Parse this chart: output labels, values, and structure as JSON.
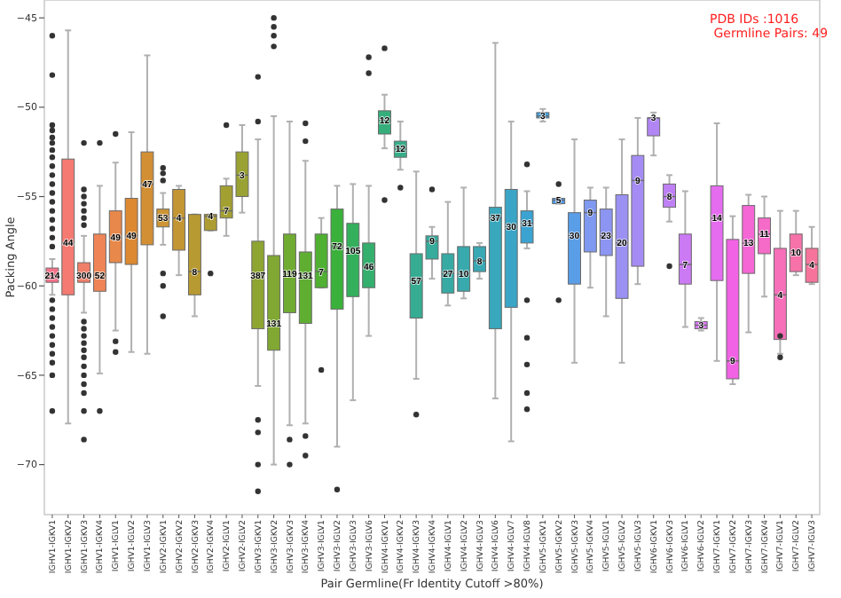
{
  "chart_data": {
    "type": "box",
    "xlabel": "Pair Germline(Fr Identity Cutoff >80%)",
    "ylabel": "Packing Angle",
    "categories": [
      "IGHV1-IGKV1",
      "IGHV1-IGKV2",
      "IGHV1-IGKV3",
      "IGHV1-IGKV4",
      "IGHV1-IGLV1",
      "IGHV1-IGLV2",
      "IGHV1-IGLV3",
      "IGHV2-IGKV1",
      "IGHV2-IGKV2",
      "IGHV2-IGKV3",
      "IGHV2-IGKV4",
      "IGHV2-IGLV1",
      "IGHV2-IGLV2",
      "IGHV3-IGKV1",
      "IGHV3-IGKV2",
      "IGHV3-IGKV3",
      "IGHV3-IGKV4",
      "IGHV3-IGLV1",
      "IGHV3-IGLV2",
      "IGHV3-IGLV3",
      "IGHV3-IGLV6",
      "IGHV4-IGKV1",
      "IGHV4-IGKV2",
      "IGHV4-IGKV3",
      "IGHV4-IGKV4",
      "IGHV4-IGLV1",
      "IGHV4-IGLV2",
      "IGHV4-IGLV3",
      "IGHV4-IGLV6",
      "IGHV4-IGLV7",
      "IGHV4-IGLV8",
      "IGHV5-IGKV1",
      "IGHV5-IGKV2",
      "IGHV5-IGKV3",
      "IGHV5-IGKV4",
      "IGHV5-IGLV1",
      "IGHV5-IGLV2",
      "IGHV5-IGLV3",
      "IGHV6-IGKV1",
      "IGHV6-IGKV3",
      "IGHV6-IGLV1",
      "IGHV6-IGLV2",
      "IGHV7-IGKV1",
      "IGHV7-IGKV2",
      "IGHV7-IGKV3",
      "IGHV7-IGKV4",
      "IGHV7-IGLV1",
      "IGHV7-IGLV2",
      "IGHV7-IGLV3"
    ],
    "colors": [
      "#f77189",
      "#f47a72",
      "#f07f6a",
      "#ef8556",
      "#e8884a",
      "#dc8932",
      "#d38f33",
      "#cd9533",
      "#c39533",
      "#b89a32",
      "#ad9c32",
      "#a3a032",
      "#99a232",
      "#8ea532",
      "#80a832",
      "#70ab32",
      "#5fae32",
      "#4fb032",
      "#3ab13a",
      "#34b05c",
      "#35af6e",
      "#35ae7c",
      "#36ad88",
      "#36ac93",
      "#37ab9c",
      "#37aaa4",
      "#38a9ac",
      "#38a8b4",
      "#39a7bc",
      "#3aa5c6",
      "#3ba3d2",
      "#3d9fe0",
      "#4a9bed",
      "#5a9ee8",
      "#7f98f0",
      "#8d95f2",
      "#9a91f3",
      "#a58cf4",
      "#b186f4",
      "#be80f4",
      "#cc79f4",
      "#d972f3",
      "#e56bef",
      "#f162e4",
      "#f567d4",
      "#f56bc7",
      "#f66fb8",
      "#f672a9",
      "#f6749b"
    ],
    "ylim": [
      -72.8,
      -44
    ],
    "yticks": [
      {
        "value": -45,
        "label": "−45"
      },
      {
        "value": -50,
        "label": "−50"
      },
      {
        "value": -55,
        "label": "−55"
      },
      {
        "value": -60,
        "label": "−60"
      },
      {
        "value": -65,
        "label": "−65"
      },
      {
        "value": -70,
        "label": "−70"
      }
    ],
    "boxes": [
      {
        "low": -60.5,
        "q1": -59.8,
        "median": -59.4,
        "q3": -59.0,
        "high": -58.5,
        "outliers": [
          -46,
          -48.2,
          -51,
          -51.3,
          -51.7,
          -52,
          -52.4,
          -52.8,
          -53.3,
          -53.8,
          -54.3,
          -54.8,
          -55.3,
          -55.8,
          -56.3,
          -56.8,
          -57.3,
          -57.8,
          -60.8,
          -61.3,
          -61.8,
          -62.3,
          -62.8,
          -63.3,
          -63.8,
          -64.3,
          -65,
          -67
        ]
      },
      {
        "low": -67.7,
        "q1": -60.5,
        "median": -57.6,
        "q3": -52.9,
        "high": -45.7
      },
      {
        "low": -61.5,
        "q1": -59.8,
        "median": -59.4,
        "q3": -58.7,
        "high": -57.2,
        "outliers": [
          -52,
          -54.6,
          -55,
          -55.4,
          -55.8,
          -56.2,
          -56.6,
          -62,
          -62.4,
          -62.8,
          -63.2,
          -63.6,
          -64,
          -64.5,
          -65,
          -65.5,
          -66,
          -67,
          -68.6
        ]
      },
      {
        "low": -64.9,
        "q1": -60.3,
        "median": -59.4,
        "q3": -57.1,
        "high": -54.4,
        "outliers": [
          -52,
          -67
        ]
      },
      {
        "low": -62.5,
        "q1": -58.7,
        "median": -57.3,
        "q3": -55.8,
        "high": -53.1,
        "outliers": [
          -51.5,
          -63.1,
          -63.7
        ]
      },
      {
        "low": -63.7,
        "q1": -58.8,
        "median": -57.2,
        "q3": -55.1,
        "high": -51.4
      },
      {
        "low": -63.8,
        "q1": -57.7,
        "median": -54.3,
        "q3": -52.5,
        "high": -47.1
      },
      {
        "low": -57.7,
        "q1": -56.7,
        "median": -56.2,
        "q3": -55.7,
        "high": -54.8,
        "outliers": [
          -53.4,
          -53.7,
          -54.1,
          -59.3,
          -60,
          -61.7
        ]
      },
      {
        "low": -59.4,
        "q1": -58,
        "median": -56.2,
        "q3": -54.6,
        "high": -54.4
      },
      {
        "low": -61.7,
        "q1": -60.5,
        "median": -59.2,
        "q3": -56,
        "high": -56
      },
      {
        "low": -56.9,
        "q1": -56.9,
        "median": -56.1,
        "q3": -56,
        "high": -56,
        "outliers": [
          -59.3
        ]
      },
      {
        "low": -57.2,
        "q1": -56.2,
        "median": -55.8,
        "q3": -54.4,
        "high": -54,
        "outliers": [
          -51
        ]
      },
      {
        "low": -55.9,
        "q1": -55,
        "median": -53.8,
        "q3": -52.5,
        "high": -51
      },
      {
        "low": -65.6,
        "q1": -62.4,
        "median": -59.4,
        "q3": -57.5,
        "high": -51.8,
        "outliers": [
          -48.3,
          -50.8,
          -67.5,
          -68.2,
          -70,
          -71.5
        ]
      },
      {
        "low": -70,
        "q1": -63.6,
        "median": -62.1,
        "q3": -58.3,
        "high": -50.5,
        "outliers": [
          -45,
          -45.5,
          -46,
          -46.6
        ]
      },
      {
        "low": -67.8,
        "q1": -61.5,
        "median": -59.3,
        "q3": -57.1,
        "high": -50.8,
        "outliers": [
          -68.6,
          -70
        ]
      },
      {
        "low": -67.7,
        "q1": -62.1,
        "median": -59.4,
        "q3": -58.1,
        "high": -53,
        "outliers": [
          -50.9,
          -51.9,
          -68.4,
          -69.5
        ]
      },
      {
        "low": -60.1,
        "q1": -60.1,
        "median": -59.2,
        "q3": -57.1,
        "high": -56.2,
        "outliers": [
          -64.7
        ]
      },
      {
        "low": -69,
        "q1": -61.3,
        "median": -57.8,
        "q3": -55.7,
        "high": -54.4,
        "outliers": [
          -71.4
        ]
      },
      {
        "low": -66.4,
        "q1": -60.6,
        "median": -58,
        "q3": -56.5,
        "high": -54.3
      },
      {
        "low": -62.8,
        "q1": -60.1,
        "median": -58.9,
        "q3": -57.6,
        "high": -54.4,
        "outliers": [
          -47.2,
          -48.1
        ]
      },
      {
        "low": -52.3,
        "q1": -51.5,
        "median": -50.7,
        "q3": -50.2,
        "high": -49.3,
        "outliers": [
          -46.7,
          -55.2
        ]
      },
      {
        "low": -53.5,
        "q1": -52.8,
        "median": -52.3,
        "q3": -51.9,
        "high": -50.8,
        "outliers": [
          -54.5
        ]
      },
      {
        "low": -65.2,
        "q1": -61.8,
        "median": -59.7,
        "q3": -58.2,
        "high": -53.6,
        "outliers": [
          -67.2
        ]
      },
      {
        "low": -59.6,
        "q1": -58.5,
        "median": -57.5,
        "q3": -57.2,
        "high": -56.7,
        "outliers": [
          -54.6
        ]
      },
      {
        "low": -61.1,
        "q1": -60.4,
        "median": -59.3,
        "q3": -58.2,
        "high": -55.3
      },
      {
        "low": -60.7,
        "q1": -60.3,
        "median": -59.3,
        "q3": -57.8,
        "high": -54.5
      },
      {
        "low": -59.6,
        "q1": -59.2,
        "median": -58.6,
        "q3": -57.8,
        "high": -57.6
      },
      {
        "low": -66.3,
        "q1": -62.4,
        "median": -56.2,
        "q3": -55.6,
        "high": -46.4
      },
      {
        "low": -68.7,
        "q1": -61.2,
        "median": -56.7,
        "q3": -54.6,
        "high": -50.8
      },
      {
        "low": -57.9,
        "q1": -57.6,
        "median": -56.5,
        "q3": -55.8,
        "high": -54.7,
        "outliers": [
          -53.2,
          -60.8,
          -62.9,
          -64.4,
          -66,
          -66.9
        ]
      },
      {
        "low": -50.8,
        "q1": -50.6,
        "median": -50.5,
        "q3": -50.3,
        "high": -50.1
      },
      {
        "low": -55.4,
        "q1": -55.4,
        "median": -55.2,
        "q3": -55.1,
        "high": -55.1,
        "outliers": [
          -54.3,
          -60.8
        ]
      },
      {
        "low": -64.3,
        "q1": -59.9,
        "median": -57.2,
        "q3": -55.9,
        "high": -51.8
      },
      {
        "low": -60.1,
        "q1": -58.1,
        "median": -55.9,
        "q3": -55.2,
        "high": -54.5
      },
      {
        "low": -61.7,
        "q1": -58.3,
        "median": -57.2,
        "q3": -55.7,
        "high": -54.5
      },
      {
        "low": -64.3,
        "q1": -60.7,
        "median": -57.6,
        "q3": -54.9,
        "high": -51.8
      },
      {
        "low": -59.9,
        "q1": -58.9,
        "median": -54.1,
        "q3": -52.7,
        "high": -50.6
      },
      {
        "low": -52.7,
        "q1": -51.6,
        "median": -50.6,
        "q3": -50.6,
        "high": -50.3
      },
      {
        "low": -56.4,
        "q1": -55.6,
        "median": -55,
        "q3": -54.3,
        "high": -53.8,
        "outliers": [
          -58.9
        ]
      },
      {
        "low": -62.3,
        "q1": -59.9,
        "median": -58.8,
        "q3": -57.1,
        "high": -54.7
      },
      {
        "low": -62.5,
        "q1": -62.4,
        "median": -62.2,
        "q3": -62,
        "high": -61.8
      },
      {
        "low": -64.2,
        "q1": -59.7,
        "median": -56.2,
        "q3": -54.4,
        "high": -50.9
      },
      {
        "low": -65.5,
        "q1": -65.2,
        "median": -64.2,
        "q3": -57.4,
        "high": -56.1
      },
      {
        "low": -62.6,
        "q1": -59.3,
        "median": -57.6,
        "q3": -55.5,
        "high": -54.9
      },
      {
        "low": -60.6,
        "q1": -58.2,
        "median": -57.1,
        "q3": -56.2,
        "high": -55
      },
      {
        "low": -63.8,
        "q1": -63,
        "median": -60.5,
        "q3": -57.9,
        "high": -55.8,
        "outliers": [
          -62.8,
          -64
        ]
      },
      {
        "low": -59.4,
        "q1": -59.2,
        "median": -58.1,
        "q3": -57.1,
        "high": -55.8
      },
      {
        "low": -59.9,
        "q1": -59.8,
        "median": -58.8,
        "q3": -57.9,
        "high": -56.7
      }
    ],
    "annotations": [
      "PDB IDs :1016",
      " Germline Pairs: 49",
      {
        "text": "214",
        "x": "IGHV1-IGKV1",
        "y": -59.4
      },
      {
        "text": "44",
        "x": "IGHV1-IGKV2",
        "y": -57.6
      },
      {
        "text": "300",
        "x": "IGHV1-IGKV3",
        "y": -59.4
      },
      {
        "text": "52",
        "x": "IGHV1-IGKV4",
        "y": -59.4
      },
      {
        "text": "49",
        "x": "IGHV1-IGLV1",
        "y": -57.3
      },
      {
        "text": "49",
        "x": "IGHV1-IGLV2",
        "y": -57.2
      },
      {
        "text": "47",
        "x": "IGHV1-IGLV3",
        "y": -54.3
      },
      {
        "text": "53",
        "x": "IGHV2-IGKV1",
        "y": -56.2
      },
      {
        "text": "4",
        "x": "IGHV2-IGKV2",
        "y": -56.2
      },
      {
        "text": "8",
        "x": "IGHV2-IGKV3",
        "y": -59.2
      },
      {
        "text": "4",
        "x": "IGHV2-IGKV4",
        "y": -56.1
      },
      {
        "text": "7",
        "x": "IGHV2-IGLV1",
        "y": -55.8
      },
      {
        "text": "3",
        "x": "IGHV2-IGLV2",
        "y": -53.8
      },
      {
        "text": "387",
        "x": "IGHV3-IGKV1",
        "y": -59.4
      },
      {
        "text": "131",
        "x": "IGHV3-IGKV2",
        "y": -62.1
      },
      {
        "text": "119",
        "x": "IGHV3-IGKV3",
        "y": -59.3
      },
      {
        "text": "131",
        "x": "IGHV3-IGKV4",
        "y": -59.4
      },
      {
        "text": "7",
        "x": "IGHV3-IGLV1",
        "y": -59.2
      },
      {
        "text": "72",
        "x": "IGHV3-IGLV2",
        "y": -57.8
      },
      {
        "text": "105",
        "x": "IGHV3-IGLV3",
        "y": -58
      },
      {
        "text": "46",
        "x": "IGHV3-IGLV6",
        "y": -58.9
      },
      {
        "text": "12",
        "x": "IGHV4-IGKV1",
        "y": -50.7
      },
      {
        "text": "12",
        "x": "IGHV4-IGKV2",
        "y": -52.3
      },
      {
        "text": "57",
        "x": "IGHV4-IGKV3",
        "y": -59.7
      },
      {
        "text": "9",
        "x": "IGHV4-IGKV4",
        "y": -57.5
      },
      {
        "text": "27",
        "x": "IGHV4-IGLV1",
        "y": -59.3
      },
      {
        "text": "10",
        "x": "IGHV4-IGLV2",
        "y": -59.3
      },
      {
        "text": "8",
        "x": "IGHV4-IGLV3",
        "y": -58.6
      },
      {
        "text": "37",
        "x": "IGHV4-IGLV6",
        "y": -56.2
      },
      {
        "text": "30",
        "x": "IGHV4-IGLV7",
        "y": -56.7
      },
      {
        "text": "31",
        "x": "IGHV4-IGLV8",
        "y": -56.5
      },
      {
        "text": "3",
        "x": "IGHV5-IGKV1",
        "y": -50.5
      },
      {
        "text": "5",
        "x": "IGHV5-IGKV2",
        "y": -55.2
      },
      {
        "text": "30",
        "x": "IGHV5-IGKV3",
        "y": -57.2
      },
      {
        "text": "9",
        "x": "IGHV5-IGKV4",
        "y": -55.9
      },
      {
        "text": "23",
        "x": "IGHV5-IGLV1",
        "y": -57.2
      },
      {
        "text": "20",
        "x": "IGHV5-IGLV2",
        "y": -57.6
      },
      {
        "text": "9",
        "x": "IGHV5-IGLV3",
        "y": -54.1
      },
      {
        "text": "3",
        "x": "IGHV6-IGKV1",
        "y": -50.6
      },
      {
        "text": "8",
        "x": "IGHV6-IGKV3",
        "y": -55
      },
      {
        "text": "7",
        "x": "IGHV6-IGLV1",
        "y": -58.8
      },
      {
        "text": "3",
        "x": "IGHV6-IGLV2",
        "y": -62.2
      },
      {
        "text": "14",
        "x": "IGHV7-IGKV1",
        "y": -56.2
      },
      {
        "text": "9",
        "x": "IGHV7-IGKV2",
        "y": -64.2
      },
      {
        "text": "13",
        "x": "IGHV7-IGKV3",
        "y": -57.6
      },
      {
        "text": "11",
        "x": "IGHV7-IGKV4",
        "y": -57.1
      },
      {
        "text": "4",
        "x": "IGHV7-IGLV1",
        "y": -60.5
      },
      {
        "text": "10",
        "x": "IGHV7-IGLV2",
        "y": -58.1
      },
      {
        "text": "4",
        "x": "IGHV7-IGLV3",
        "y": -58.8
      }
    ]
  }
}
